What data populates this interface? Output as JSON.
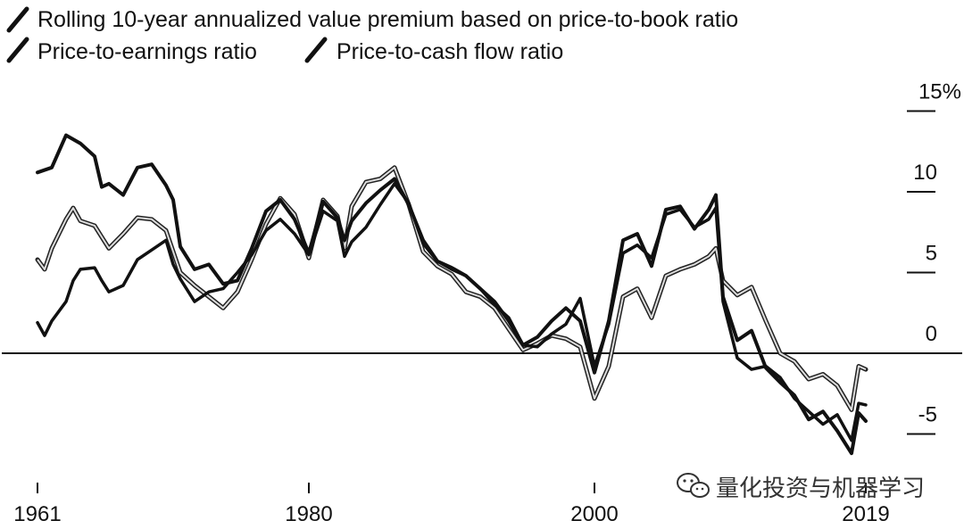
{
  "chart_data": {
    "type": "line",
    "title": "",
    "xlabel": "",
    "ylabel": "",
    "x_ticks": [
      1961,
      1980,
      2000,
      2019
    ],
    "y_ticks": [
      {
        "value": 15,
        "label": "15%"
      },
      {
        "value": 10,
        "label": "10"
      },
      {
        "value": 5,
        "label": "5"
      },
      {
        "value": 0,
        "label": "0"
      },
      {
        "value": -5,
        "label": "-5"
      }
    ],
    "xlim": [
      1961,
      2019.5
    ],
    "ylim": [
      -8,
      15
    ],
    "grid": false,
    "legend_position": "top-left",
    "series": [
      {
        "name": "Rolling 10-year annualized value premium based on price-to-book ratio",
        "color": "#111111",
        "points": [
          [
            1961,
            1.9
          ],
          [
            1961.5,
            1.1
          ],
          [
            1962,
            2.0
          ],
          [
            1963,
            3.2
          ],
          [
            1963.5,
            4.5
          ],
          [
            1964,
            5.2
          ],
          [
            1965,
            5.3
          ],
          [
            1965.5,
            4.5
          ],
          [
            1966,
            3.8
          ],
          [
            1967,
            4.2
          ],
          [
            1968,
            5.8
          ],
          [
            1969,
            6.4
          ],
          [
            1970,
            7.0
          ],
          [
            1970.5,
            5.5
          ],
          [
            1971,
            4.6
          ],
          [
            1972,
            3.2
          ],
          [
            1973,
            3.8
          ],
          [
            1974,
            4.0
          ],
          [
            1975,
            5.0
          ],
          [
            1976,
            6.1
          ],
          [
            1977,
            7.6
          ],
          [
            1978,
            8.3
          ],
          [
            1979,
            7.4
          ],
          [
            1980,
            6.1
          ],
          [
            1981,
            8.8
          ],
          [
            1982,
            8.2
          ],
          [
            1982.5,
            6.0
          ],
          [
            1983,
            6.9
          ],
          [
            1984,
            7.8
          ],
          [
            1985,
            9.2
          ],
          [
            1986,
            10.5
          ],
          [
            1987,
            9.3
          ],
          [
            1988,
            6.8
          ],
          [
            1989,
            5.7
          ],
          [
            1990,
            5.2
          ],
          [
            1991,
            4.8
          ],
          [
            1992,
            4.0
          ],
          [
            1993,
            3.0
          ],
          [
            1994,
            2.2
          ],
          [
            1995,
            0.5
          ],
          [
            1996,
            0.4
          ],
          [
            1997,
            1.2
          ],
          [
            1998,
            1.8
          ],
          [
            1999,
            3.4
          ],
          [
            2000,
            -0.8
          ],
          [
            2001,
            1.8
          ],
          [
            2002,
            6.2
          ],
          [
            2003,
            6.7
          ],
          [
            2004,
            5.9
          ],
          [
            2005,
            8.6
          ],
          [
            2006,
            8.9
          ],
          [
            2007,
            7.8
          ],
          [
            2008,
            8.3
          ],
          [
            2008.5,
            9.0
          ],
          [
            2009,
            3.2
          ],
          [
            2010,
            -0.3
          ],
          [
            2011,
            -1.0
          ],
          [
            2012,
            -0.8
          ],
          [
            2013,
            -1.5
          ],
          [
            2014,
            -2.8
          ],
          [
            2015,
            -3.6
          ],
          [
            2016,
            -4.4
          ],
          [
            2017,
            -3.8
          ],
          [
            2018,
            -5.4
          ],
          [
            2018.5,
            -3.1
          ],
          [
            2019,
            -3.2
          ]
        ]
      },
      {
        "name": "Price-to-earnings ratio",
        "color": "#111111",
        "points": [
          [
            1961,
            11.2
          ],
          [
            1962,
            11.5
          ],
          [
            1963,
            13.5
          ],
          [
            1964,
            13.0
          ],
          [
            1965,
            12.2
          ],
          [
            1965.5,
            10.3
          ],
          [
            1966,
            10.5
          ],
          [
            1967,
            9.8
          ],
          [
            1968,
            11.5
          ],
          [
            1969,
            11.7
          ],
          [
            1970,
            10.4
          ],
          [
            1970.5,
            9.5
          ],
          [
            1971,
            6.6
          ],
          [
            1972,
            5.2
          ],
          [
            1973,
            5.5
          ],
          [
            1974,
            4.3
          ],
          [
            1975,
            4.5
          ],
          [
            1976,
            6.5
          ],
          [
            1977,
            8.8
          ],
          [
            1978,
            9.5
          ],
          [
            1979,
            8.3
          ],
          [
            1980,
            6.2
          ],
          [
            1981,
            9.4
          ],
          [
            1982,
            8.4
          ],
          [
            1982.5,
            7.0
          ],
          [
            1983,
            8.2
          ],
          [
            1984,
            9.3
          ],
          [
            1985,
            10.1
          ],
          [
            1986,
            10.8
          ],
          [
            1987,
            9.2
          ],
          [
            1988,
            7.0
          ],
          [
            1989,
            5.7
          ],
          [
            1990,
            5.3
          ],
          [
            1991,
            4.8
          ],
          [
            1992,
            4.0
          ],
          [
            1993,
            3.2
          ],
          [
            1994,
            2.0
          ],
          [
            1995,
            0.5
          ],
          [
            1996,
            1.0
          ],
          [
            1997,
            2.0
          ],
          [
            1998,
            2.8
          ],
          [
            1999,
            2.0
          ],
          [
            2000,
            -1.2
          ],
          [
            2001,
            2.0
          ],
          [
            2002,
            7.0
          ],
          [
            2003,
            7.4
          ],
          [
            2004,
            5.4
          ],
          [
            2005,
            8.9
          ],
          [
            2006,
            9.1
          ],
          [
            2007,
            7.7
          ],
          [
            2008,
            8.9
          ],
          [
            2008.5,
            9.8
          ],
          [
            2009,
            3.5
          ],
          [
            2010,
            0.8
          ],
          [
            2011,
            1.4
          ],
          [
            2012,
            -0.9
          ],
          [
            2013,
            -1.8
          ],
          [
            2014,
            -2.6
          ],
          [
            2015,
            -4.1
          ],
          [
            2016,
            -3.6
          ],
          [
            2017,
            -4.8
          ],
          [
            2018,
            -6.2
          ],
          [
            2018.5,
            -3.7
          ],
          [
            2019,
            -4.2
          ]
        ]
      },
      {
        "name": "Price-to-cash flow ratio",
        "color": "#8a8a8a",
        "points": [
          [
            1961,
            5.8
          ],
          [
            1961.5,
            5.2
          ],
          [
            1962,
            6.5
          ],
          [
            1963,
            8.3
          ],
          [
            1963.5,
            9.0
          ],
          [
            1964,
            8.2
          ],
          [
            1965,
            7.9
          ],
          [
            1966,
            6.5
          ],
          [
            1967,
            7.4
          ],
          [
            1968,
            8.4
          ],
          [
            1969,
            8.3
          ],
          [
            1970,
            7.6
          ],
          [
            1971,
            5.0
          ],
          [
            1972,
            4.2
          ],
          [
            1973,
            3.5
          ],
          [
            1974,
            2.8
          ],
          [
            1975,
            3.8
          ],
          [
            1976,
            5.8
          ],
          [
            1977,
            8.0
          ],
          [
            1978,
            9.6
          ],
          [
            1979,
            8.6
          ],
          [
            1980,
            5.9
          ],
          [
            1981,
            9.5
          ],
          [
            1982,
            8.5
          ],
          [
            1982.5,
            6.5
          ],
          [
            1983,
            9.1
          ],
          [
            1984,
            10.6
          ],
          [
            1985,
            10.8
          ],
          [
            1986,
            11.5
          ],
          [
            1987,
            9.2
          ],
          [
            1988,
            6.3
          ],
          [
            1989,
            5.4
          ],
          [
            1990,
            4.9
          ],
          [
            1991,
            3.8
          ],
          [
            1992,
            3.5
          ],
          [
            1993,
            2.8
          ],
          [
            1994,
            1.5
          ],
          [
            1995,
            0.2
          ],
          [
            1996,
            0.6
          ],
          [
            1997,
            1.1
          ],
          [
            1998,
            0.9
          ],
          [
            1999,
            0.4
          ],
          [
            2000,
            -2.8
          ],
          [
            2001,
            -0.8
          ],
          [
            2002,
            3.5
          ],
          [
            2003,
            4.0
          ],
          [
            2004,
            2.2
          ],
          [
            2005,
            4.8
          ],
          [
            2006,
            5.2
          ],
          [
            2007,
            5.5
          ],
          [
            2008,
            6.0
          ],
          [
            2008.5,
            6.5
          ],
          [
            2009,
            4.5
          ],
          [
            2010,
            3.6
          ],
          [
            2011,
            4.1
          ],
          [
            2012,
            2.0
          ],
          [
            2013,
            0.0
          ],
          [
            2014,
            -0.5
          ],
          [
            2015,
            -1.6
          ],
          [
            2016,
            -1.3
          ],
          [
            2017,
            -2.0
          ],
          [
            2018,
            -3.5
          ],
          [
            2018.5,
            -0.8
          ],
          [
            2019,
            -1.0
          ]
        ]
      }
    ]
  },
  "watermark": {
    "icon": "wechat-icon",
    "text": "量化投资与机器学习"
  }
}
